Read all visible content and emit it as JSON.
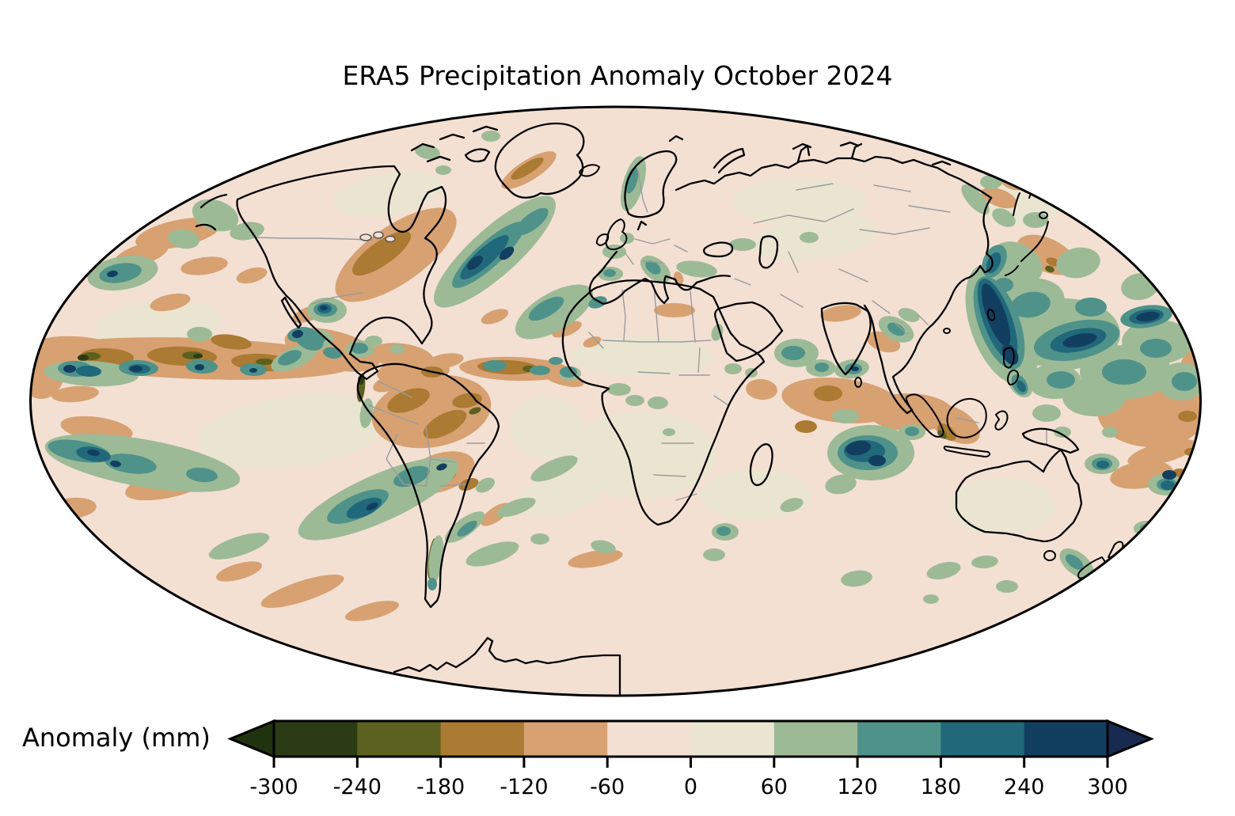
{
  "title": "ERA5 Precipitation Anomaly October 2024",
  "colorbar": {
    "label": "Anomaly (mm)",
    "tick_labels": [
      "-300",
      "-240",
      "-180",
      "-120",
      "-60",
      "0",
      "60",
      "120",
      "180",
      "240",
      "300"
    ],
    "tick_values": [
      -300,
      -240,
      -180,
      -120,
      -60,
      0,
      60,
      120,
      180,
      240,
      300
    ],
    "units": "mm",
    "bin_colors": [
      "#2b3b13",
      "#5d611f",
      "#ab7a33",
      "#d7a172",
      "#f3e0d3",
      "#eae5d1",
      "#9dba96",
      "#4f928a",
      "#20687a",
      "#123f60"
    ],
    "extend_low_color": "#20330e",
    "extend_high_color": "#182a50",
    "outline_color": "#000000"
  },
  "palette": {
    "base": "#f3e0d3",
    "cream": "#eae5d1",
    "tan": "#d7a172",
    "brown": "#ab7a33",
    "olive": "#5d611f",
    "dgreen": "#2b3b13",
    "sage": "#9dba96",
    "teal": "#4f928a",
    "dteal": "#20687a",
    "navy": "#123f60",
    "coastline": "#000000",
    "country_border": "#9b9b9b"
  },
  "map": {
    "projection_shape": "ellipse",
    "background_color": "#f3e0d3",
    "features": [
      {
        "region": "equatorial central-eastern Pacific",
        "anomaly": "dry band with embedded strong wet cells",
        "approx_mm": "-180 to -240 dry, +180 to +300 wet cells"
      },
      {
        "region": "eastern United States",
        "anomaly": "dry band Great Lakes to Southeast coast",
        "approx_mm": "-120 to -180"
      },
      {
        "region": "southeastern Greenland coast",
        "anomaly": "dry",
        "approx_mm": "-120 to -180"
      },
      {
        "region": "subtropical North Atlantic",
        "anomaly": "wet diagonal streak",
        "approx_mm": "+180 to +300"
      },
      {
        "region": "Gulf of Mexico and western Caribbean",
        "anomaly": "wet cells",
        "approx_mm": "+180 to +300"
      },
      {
        "region": "Amazon basin and northern South America",
        "anomaly": "dry",
        "approx_mm": "-120 to -180"
      },
      {
        "region": "equatorial Atlantic",
        "anomaly": "dry band",
        "approx_mm": "-180 to -240"
      },
      {
        "region": "southeastern South Pacific",
        "anomaly": "wet streaks",
        "approx_mm": "+180 to +300"
      },
      {
        "region": "western Mediterranean, Italy and Balkans",
        "anomaly": "wet",
        "approx_mm": "+60 to +180"
      },
      {
        "region": "Norway coast",
        "anomaly": "wet",
        "approx_mm": "+60 to +120"
      },
      {
        "region": "tropical Indian Ocean",
        "anomaly": "dry band",
        "approx_mm": "-120 to -180"
      },
      {
        "region": "central south Indian Ocean",
        "anomaly": "strong wet",
        "approx_mm": "+240 to +300"
      },
      {
        "region": "Arabian Sea and southern India",
        "anomaly": "wet",
        "approx_mm": "+120 to +300"
      },
      {
        "region": "Sumatra and eastern Indian Ocean",
        "anomaly": "dry",
        "approx_mm": "-120 to -240"
      },
      {
        "region": "northwest Pacific east of Taiwan and Philippines",
        "anomaly": "very wet elongated band",
        "approx_mm": "+300"
      },
      {
        "region": "tropical western-central Pacific",
        "anomaly": "wet field with strong cells",
        "approx_mm": "+120 to +300"
      },
      {
        "region": "central South Pacific subtropics",
        "anomaly": "dry",
        "approx_mm": "-60 to -180"
      },
      {
        "region": "Australia interior",
        "anomaly": "near normal",
        "approx_mm": "0 to +60"
      },
      {
        "region": "remaining oceans and continents",
        "anomaly": "near normal",
        "approx_mm": "-60 to +60"
      }
    ]
  }
}
